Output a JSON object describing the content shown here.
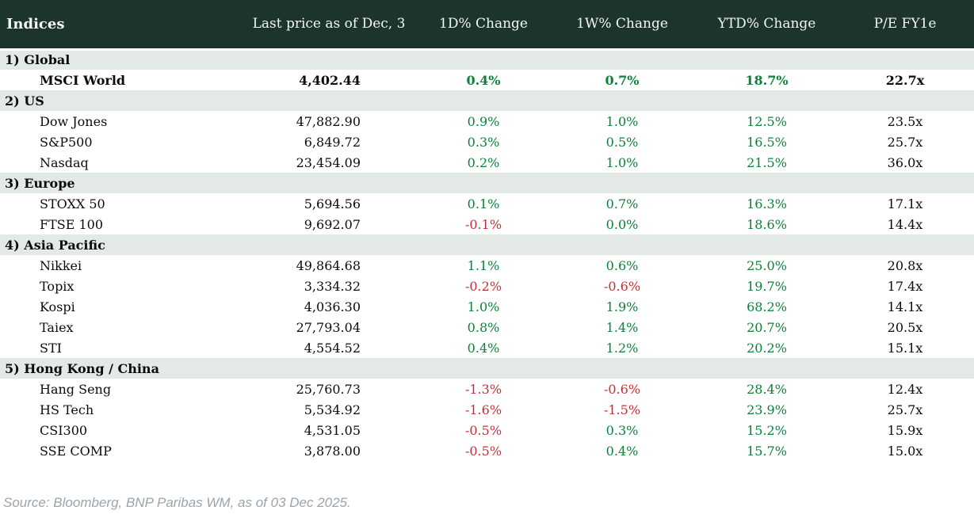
{
  "colors": {
    "header_bg": "#1d342d",
    "header_text": "#f4f6f3",
    "section_bg": "#e3e9e4",
    "positive": "#0d8039",
    "negative": "#bf3138",
    "row_text": "#0b0b0b",
    "source_text": "#9aa4ad"
  },
  "table": {
    "columns": [
      "Indices",
      "Last price as of Dec, 3",
      "1D% Change",
      "1W% Change",
      "YTD% Change",
      "P/E FY1e"
    ],
    "sections": [
      {
        "label": "1) Global",
        "rows": [
          {
            "name": "MSCI World",
            "last_price": "4,402.44",
            "change_1d": "0.4%",
            "change_1w": "0.7%",
            "change_ytd": "18.7%",
            "pe": "22.7x",
            "bold": true
          }
        ]
      },
      {
        "label": "2) US",
        "rows": [
          {
            "name": "Dow Jones",
            "last_price": "47,882.90",
            "change_1d": "0.9%",
            "change_1w": "1.0%",
            "change_ytd": "12.5%",
            "pe": "23.5x",
            "bold": false
          },
          {
            "name": "S&P500",
            "last_price": "6,849.72",
            "change_1d": "0.3%",
            "change_1w": "0.5%",
            "change_ytd": "16.5%",
            "pe": "25.7x",
            "bold": false
          },
          {
            "name": "Nasdaq",
            "last_price": "23,454.09",
            "change_1d": "0.2%",
            "change_1w": "1.0%",
            "change_ytd": "21.5%",
            "pe": "36.0x",
            "bold": false
          }
        ]
      },
      {
        "label": "3) Europe",
        "rows": [
          {
            "name": "STOXX 50",
            "last_price": "5,694.56",
            "change_1d": "0.1%",
            "change_1w": "0.7%",
            "change_ytd": "16.3%",
            "pe": "17.1x",
            "bold": false
          },
          {
            "name": "FTSE 100",
            "last_price": "9,692.07",
            "change_1d": "-0.1%",
            "change_1w": "0.0%",
            "change_ytd": "18.6%",
            "pe": "14.4x",
            "bold": false
          }
        ]
      },
      {
        "label": "4) Asia Pacific",
        "rows": [
          {
            "name": "Nikkei",
            "last_price": "49,864.68",
            "change_1d": "1.1%",
            "change_1w": "0.6%",
            "change_ytd": "25.0%",
            "pe": "20.8x",
            "bold": false
          },
          {
            "name": "Topix",
            "last_price": "3,334.32",
            "change_1d": "-0.2%",
            "change_1w": "-0.6%",
            "change_ytd": "19.7%",
            "pe": "17.4x",
            "bold": false
          },
          {
            "name": "Kospi",
            "last_price": "4,036.30",
            "change_1d": "1.0%",
            "change_1w": "1.9%",
            "change_ytd": "68.2%",
            "pe": "14.1x",
            "bold": false
          },
          {
            "name": "Taiex",
            "last_price": "27,793.04",
            "change_1d": "0.8%",
            "change_1w": "1.4%",
            "change_ytd": "20.7%",
            "pe": "20.5x",
            "bold": false
          },
          {
            "name": "STI",
            "last_price": "4,554.52",
            "change_1d": "0.4%",
            "change_1w": "1.2%",
            "change_ytd": "20.2%",
            "pe": "15.1x",
            "bold": false
          }
        ]
      },
      {
        "label": "5) Hong Kong / China",
        "rows": [
          {
            "name": "Hang Seng",
            "last_price": "25,760.73",
            "change_1d": "-1.3%",
            "change_1w": "-0.6%",
            "change_ytd": "28.4%",
            "pe": "12.4x",
            "bold": false
          },
          {
            "name": "HS Tech",
            "last_price": "5,534.92",
            "change_1d": "-1.6%",
            "change_1w": "-1.5%",
            "change_ytd": "23.9%",
            "pe": "25.7x",
            "bold": false
          },
          {
            "name": "CSI300",
            "last_price": "4,531.05",
            "change_1d": "-0.5%",
            "change_1w": "0.3%",
            "change_ytd": "15.2%",
            "pe": "15.9x",
            "bold": false
          },
          {
            "name": "SSE COMP",
            "last_price": "3,878.00",
            "change_1d": "-0.5%",
            "change_1w": "0.4%",
            "change_ytd": "15.7%",
            "pe": "15.0x",
            "bold": false
          }
        ]
      }
    ]
  },
  "footer": {
    "source": "Source: Bloomberg, BNP Paribas WM, as of 03 Dec 2025."
  }
}
